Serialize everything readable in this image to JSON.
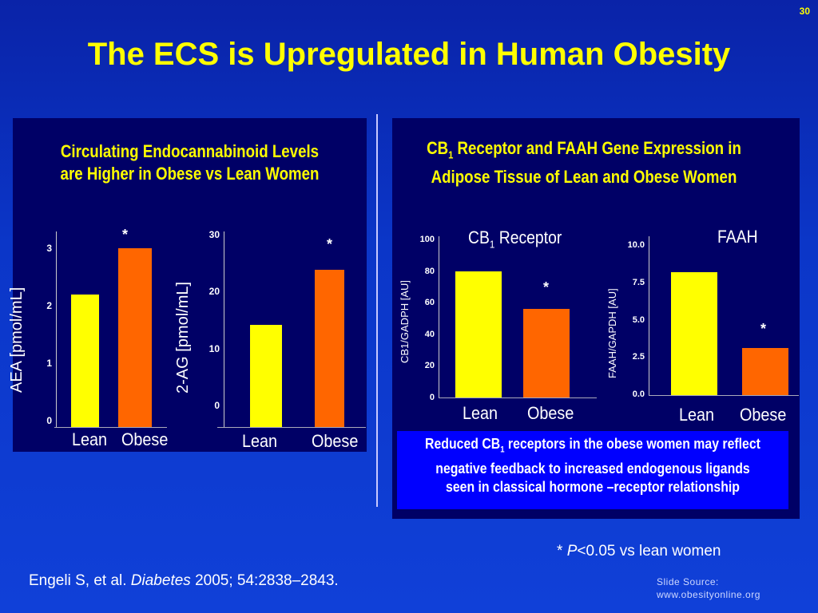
{
  "slide_number": "30",
  "title": "The ECS is Upregulated in Human Obesity",
  "left_panel": {
    "title_line1": "Circulating Endocannabinoid Levels",
    "title_line2": "are Higher in Obese vs Lean Women"
  },
  "right_panel": {
    "title_part1": "CB",
    "title_sub": "1",
    "title_part2": " Receptor and FAAH Gene Expression in",
    "title_line2": "Adipose Tissue of Lean and Obese Women"
  },
  "note": {
    "part1": "Reduced CB",
    "sub": "1",
    "part2": " receptors in the obese women may reflect negative feedback to increased endogenous ligands seen in classical hormone –receptor relationship"
  },
  "pvalue_note": {
    "star": "* ",
    "p": "P",
    "rest": "<0.05 vs lean women"
  },
  "citation": {
    "authors": "Engeli S, et al. ",
    "journal": "Diabetes",
    "rest": " 2005; 54:2838–2843."
  },
  "source": {
    "line1": "Slide Source:",
    "line2": "www.obesityonline.org"
  },
  "colors": {
    "lean": "#ffff00",
    "obese": "#ff6600",
    "panel": "#000066",
    "title": "#ffff00"
  },
  "chart_data": [
    {
      "type": "bar",
      "ylabel": "AEA [pmol/mL]",
      "categories": [
        "Lean",
        "Obese"
      ],
      "values": [
        2.2,
        3.0
      ],
      "ylim": [
        0,
        3
      ],
      "yticks": [
        "0",
        "1",
        "2",
        "3"
      ],
      "significant": [
        false,
        true
      ],
      "grid": false
    },
    {
      "type": "bar",
      "ylabel": "2-AG [pmol/mL]",
      "categories": [
        "Lean",
        "Obese"
      ],
      "values": [
        14.2,
        23.8
      ],
      "ylim": [
        0,
        30
      ],
      "yticks": [
        "0",
        "10",
        "20",
        "30"
      ],
      "significant": [
        false,
        true
      ],
      "grid": false
    },
    {
      "type": "bar",
      "title": "CB1 Receptor",
      "ylabel": "CB1/GADPH [AU]",
      "categories": [
        "Lean",
        "Obese"
      ],
      "values": [
        80,
        56
      ],
      "ylim": [
        0,
        100
      ],
      "yticks": [
        "0",
        "20",
        "40",
        "60",
        "80",
        "100"
      ],
      "significant": [
        false,
        true
      ],
      "grid": false
    },
    {
      "type": "bar",
      "title": "FAAH",
      "ylabel": "FAAH/GAPDH [AU]",
      "categories": [
        "Lean",
        "Obese"
      ],
      "values": [
        8.2,
        3.1
      ],
      "ylim": [
        0,
        10
      ],
      "yticks": [
        "0.0",
        "2.5",
        "5.0",
        "7.5",
        "10.0"
      ],
      "significant": [
        false,
        true
      ],
      "grid": false
    }
  ]
}
